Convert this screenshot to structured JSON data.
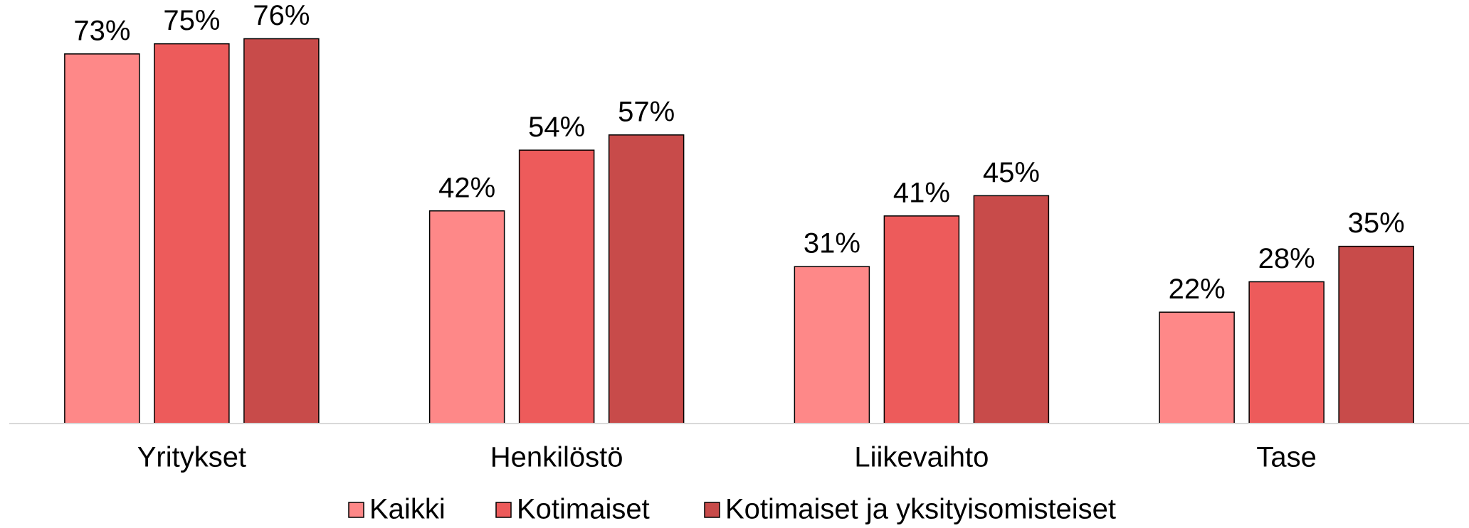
{
  "chart_data": {
    "type": "bar",
    "categories": [
      "Yritykset",
      "Henkilöstö",
      "Liikevaihto",
      "Tase"
    ],
    "series": [
      {
        "name": "Kaikki",
        "color": "#fe8888",
        "values": [
          73,
          42,
          31,
          22
        ],
        "value_labels": [
          "73%",
          "42%",
          "31%",
          "22%"
        ]
      },
      {
        "name": "Kotimaiset",
        "color": "#ed5b5b",
        "values": [
          75,
          54,
          41,
          28
        ],
        "value_labels": [
          "75%",
          "54%",
          "41%",
          "28%"
        ]
      },
      {
        "name": "Kotimaiset ja yksityisomisteiset",
        "color": "#c84b4a",
        "values": [
          76,
          57,
          45,
          35
        ],
        "value_labels": [
          "76%",
          "57%",
          "45%",
          "35%"
        ]
      }
    ],
    "ylim": [
      0,
      80
    ],
    "legend": "bottom"
  }
}
